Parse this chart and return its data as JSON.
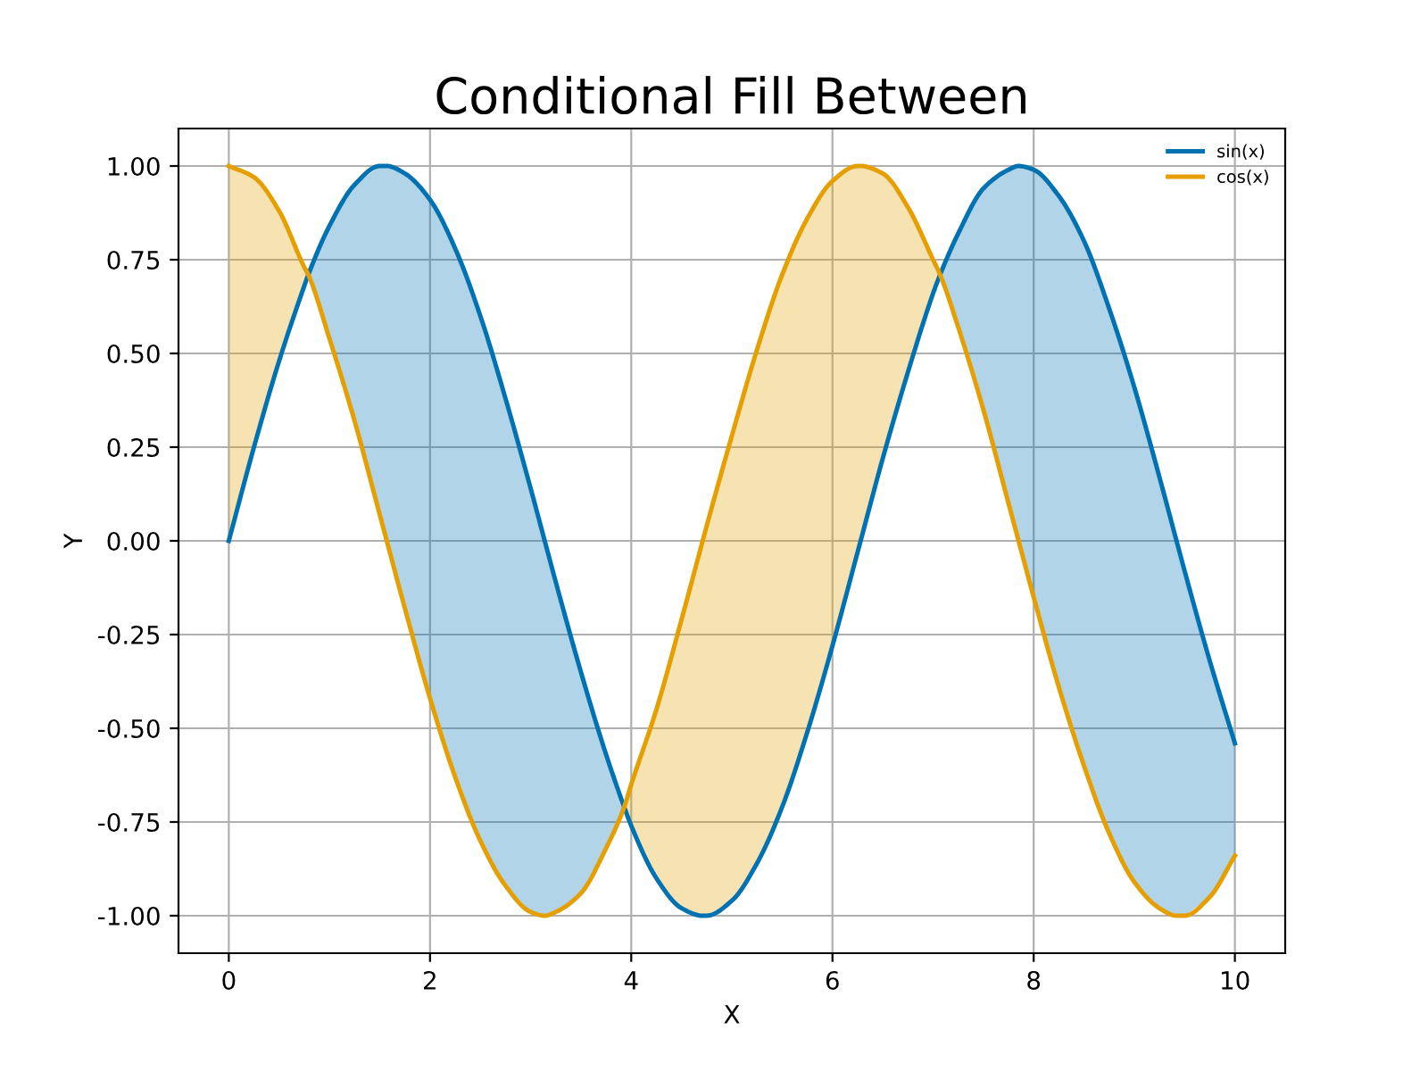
{
  "chart_data": {
    "type": "line",
    "title": "Conditional Fill Between",
    "xlabel": "X",
    "ylabel": "Y",
    "x": [
      0,
      0.25,
      0.5,
      0.75,
      0.79,
      1,
      1.25,
      1.5,
      1.57,
      1.75,
      2,
      2.25,
      2.5,
      2.75,
      3,
      3.14,
      3.25,
      3.5,
      3.75,
      3.93,
      4,
      4.25,
      4.5,
      4.71,
      4.75,
      5,
      5.25,
      5.5,
      5.75,
      6,
      6.25,
      6.28,
      6.5,
      6.75,
      7,
      7.07,
      7.25,
      7.5,
      7.75,
      7.85,
      8,
      8.25,
      8.5,
      8.75,
      9,
      9.25,
      9.42,
      9.5,
      9.75,
      10
    ],
    "series": [
      {
        "name": "sin(x)",
        "color": "#0072b2",
        "values": [
          0,
          0.25,
          0.48,
          0.68,
          0.71,
          0.84,
          0.95,
          1.0,
          1.0,
          0.98,
          0.91,
          0.78,
          0.6,
          0.38,
          0.14,
          0,
          -0.11,
          -0.35,
          -0.57,
          -0.71,
          -0.76,
          -0.9,
          -0.98,
          -1.0,
          -1.0,
          -0.96,
          -0.86,
          -0.71,
          -0.51,
          -0.28,
          -0.03,
          0,
          0.22,
          0.45,
          0.66,
          0.71,
          0.82,
          0.94,
          0.99,
          1.0,
          0.99,
          0.92,
          0.8,
          0.62,
          0.41,
          0.17,
          0,
          -0.08,
          -0.32,
          -0.54
        ],
        "upper": [
          null,
          null,
          null,
          null,
          0.71,
          0.84,
          0.95,
          1.0,
          1.0,
          0.98,
          0.91,
          0.78,
          0.6,
          0.38,
          0.14,
          0,
          -0.11,
          -0.35,
          -0.57,
          -0.71,
          null,
          null,
          null,
          null,
          null,
          null,
          null,
          null,
          null,
          null,
          null,
          null,
          null,
          null,
          null,
          0.71,
          0.82,
          0.94,
          0.99,
          1.0,
          0.99,
          0.92,
          0.8,
          0.62,
          0.41,
          0.17,
          0,
          -0.08,
          -0.32,
          -0.54
        ],
        "lower": [
          null,
          null,
          null,
          null,
          0.71,
          0.54,
          0.32,
          0.07,
          0,
          -0.18,
          -0.42,
          -0.63,
          -0.8,
          -0.92,
          -0.99,
          -1.0,
          -0.99,
          -0.94,
          -0.82,
          -0.71,
          null,
          null,
          null,
          null,
          null,
          null,
          null,
          null,
          null,
          null,
          null,
          null,
          null,
          null,
          null,
          0.71,
          0.57,
          0.35,
          0.1,
          0,
          -0.15,
          -0.39,
          -0.6,
          -0.78,
          -0.91,
          -0.98,
          -1.0,
          -1.0,
          -0.95,
          -0.84
        ]
      },
      {
        "name": "cos(x)",
        "color": "#e69f00",
        "values": [
          1,
          0.97,
          0.88,
          0.73,
          0.71,
          0.54,
          0.32,
          0.07,
          0,
          -0.18,
          -0.42,
          -0.63,
          -0.8,
          -0.92,
          -0.99,
          -1.0,
          -0.99,
          -0.94,
          -0.82,
          -0.71,
          -0.65,
          -0.45,
          -0.21,
          0,
          0.04,
          0.28,
          0.51,
          0.71,
          0.86,
          0.96,
          1.0,
          1.0,
          0.98,
          0.89,
          0.75,
          0.71,
          0.57,
          0.35,
          0.1,
          0,
          -0.15,
          -0.39,
          -0.6,
          -0.78,
          -0.91,
          -0.98,
          -1.0,
          -1.0,
          -0.95,
          -0.84
        ],
        "upper": [
          1,
          0.97,
          0.88,
          0.73,
          0.71,
          null,
          null,
          null,
          null,
          null,
          null,
          null,
          null,
          null,
          null,
          null,
          null,
          null,
          null,
          -0.71,
          -0.65,
          -0.45,
          -0.21,
          0,
          0.04,
          0.28,
          0.51,
          0.71,
          0.86,
          0.96,
          1.0,
          1.0,
          0.98,
          0.89,
          0.75,
          0.71,
          null,
          null,
          null,
          null,
          null,
          null,
          null,
          null,
          null,
          null,
          null,
          null,
          null,
          null
        ],
        "lower": [
          0,
          0.25,
          0.48,
          0.68,
          0.71,
          null,
          null,
          null,
          null,
          null,
          null,
          null,
          null,
          null,
          null,
          null,
          null,
          null,
          null,
          -0.71,
          -0.76,
          -0.9,
          -0.98,
          -1.0,
          -1.0,
          -0.96,
          -0.86,
          -0.71,
          -0.51,
          -0.28,
          -0.03,
          0,
          0.22,
          0.45,
          0.66,
          0.71,
          null,
          null,
          null,
          null,
          null,
          null,
          null,
          null,
          null,
          null,
          null,
          null,
          null,
          null
        ]
      }
    ],
    "xlim": [
      -0.5,
      10.5
    ],
    "ylim": [
      -1.1,
      1.1
    ],
    "xticks": [
      0,
      2,
      4,
      6,
      8,
      10
    ],
    "yticks": [
      {
        "value": -1,
        "label": "-1.00"
      },
      {
        "value": -0.75,
        "label": "-0.75"
      },
      {
        "value": -0.5,
        "label": "-0.50"
      },
      {
        "value": -0.25,
        "label": "-0.25"
      },
      {
        "value": 0,
        "label": "0.00"
      },
      {
        "value": 0.25,
        "label": "0.25"
      },
      {
        "value": 0.5,
        "label": "0.50"
      },
      {
        "value": 0.75,
        "label": "0.75"
      },
      {
        "value": 1,
        "label": "1.00"
      }
    ],
    "grid": true,
    "legend": "top right",
    "marker": "none",
    "line_style": "solid"
  }
}
